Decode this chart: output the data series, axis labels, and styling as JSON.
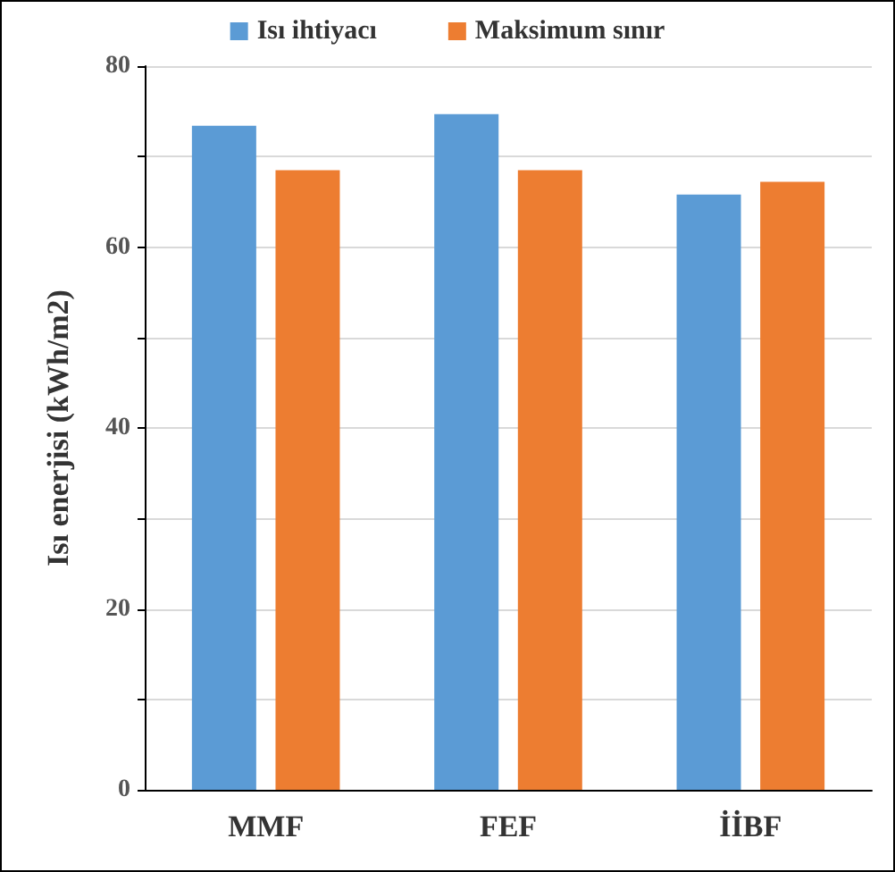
{
  "chart_data": {
    "type": "bar",
    "ylabel": "Isı enerjisi (kWh/m2)",
    "categories": [
      "MMF",
      "FEF",
      "İİBF"
    ],
    "series": [
      {
        "name": "Isı ihtiyacı",
        "color": "#5b9bd5",
        "values": [
          73.4,
          74.7,
          65.8
        ]
      },
      {
        "name": "Maksimum sınır",
        "color": "#ed7d31",
        "values": [
          68.5,
          68.5,
          67.2
        ]
      }
    ],
    "ylim": [
      0,
      80
    ],
    "yticks": [
      0,
      {
        "value": 10,
        "label": null
      },
      20,
      {
        "value": 30,
        "label": null
      },
      40,
      {
        "value": 50,
        "label": null
      },
      60,
      {
        "value": 70,
        "label": null
      },
      80
    ],
    "grid": "y",
    "legend": "top"
  }
}
